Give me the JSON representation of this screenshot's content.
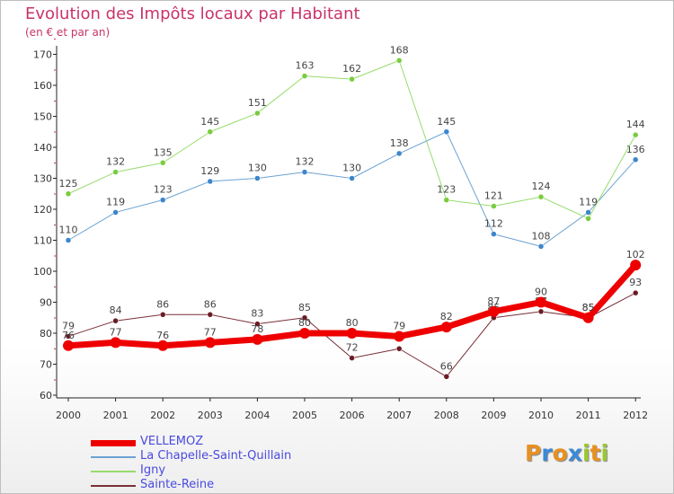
{
  "title": "Evolution des Impôts locaux par Habitant",
  "subtitle": "(en € et par an)",
  "logo": {
    "text": "Proxiti",
    "letters": [
      "P",
      "r",
      "o",
      "x",
      "i",
      "t",
      "i"
    ],
    "colors": [
      "#e89020",
      "#3a8ad8",
      "#e89020",
      "#3a8ad8",
      "#9ac830",
      "#e89020",
      "#9ac830"
    ]
  },
  "chart_data": {
    "type": "line",
    "title": "Evolution des Impôts locaux par Habitant",
    "subtitle": "(en € et par an)",
    "xlabel": "",
    "ylabel": "",
    "ylim": [
      60,
      170
    ],
    "yticks": [
      "60",
      "70",
      "80",
      "90",
      "100",
      "110",
      "120",
      "130",
      "140",
      "150",
      "160",
      "170"
    ],
    "grid": false,
    "categories": [
      "2000",
      "2001",
      "2002",
      "2003",
      "2004",
      "2005",
      "2006",
      "2007",
      "2008",
      "2009",
      "2010",
      "2011",
      "2012"
    ],
    "series": [
      {
        "name": "Sainte-Reine",
        "color": "#7a2f38",
        "dot": "#6a1c26",
        "width": 1,
        "values": [
          79,
          84,
          86,
          86,
          83,
          85,
          72,
          75,
          66,
          85,
          87,
          85,
          93
        ],
        "labels": [
          "79",
          "84",
          "86",
          "86",
          "83",
          "85",
          "72",
          "",
          "66",
          "85",
          "87",
          "85",
          "93"
        ]
      },
      {
        "name": "La Chapelle-Saint-Quillain",
        "color": "#6ca2d2",
        "dot": "#3d86cc",
        "width": 1,
        "values": [
          110,
          119,
          123,
          129,
          130,
          132,
          130,
          138,
          145,
          112,
          108,
          119,
          136
        ],
        "labels": [
          "110",
          "119",
          "123",
          "129",
          "130",
          "132",
          "130",
          "138",
          "145",
          "112",
          "108",
          "119",
          "136"
        ]
      },
      {
        "name": "Igny",
        "color": "#96dc6c",
        "dot": "#7acc3e",
        "width": 1,
        "values": [
          125,
          132,
          135,
          145,
          151,
          163,
          162,
          168,
          123,
          121,
          124,
          117,
          144
        ],
        "labels": [
          "125",
          "132",
          "135",
          "145",
          "151",
          "163",
          "162",
          "168",
          "123",
          "121",
          "124",
          "",
          "144"
        ]
      },
      {
        "name": "VELLEMOZ",
        "color": "#ee0000",
        "dot": "#ee0000",
        "width": 7,
        "values": [
          76,
          77,
          76,
          77,
          78,
          80,
          80,
          79,
          82,
          87,
          90,
          85,
          102
        ],
        "labels": [
          "76",
          "77",
          "76",
          "77",
          "78",
          "80",
          "80",
          "79",
          "82",
          "87",
          "90",
          "85",
          "102"
        ]
      }
    ],
    "legend": [
      "VELLEMOZ",
      "La Chapelle-Saint-Quillain",
      "Igny",
      "Sainte-Reine"
    ],
    "legend_colors": [
      "#ee0000",
      "#6ca2d2",
      "#96dc6c",
      "#7a2f38"
    ],
    "legend_position": "bottom-left"
  }
}
